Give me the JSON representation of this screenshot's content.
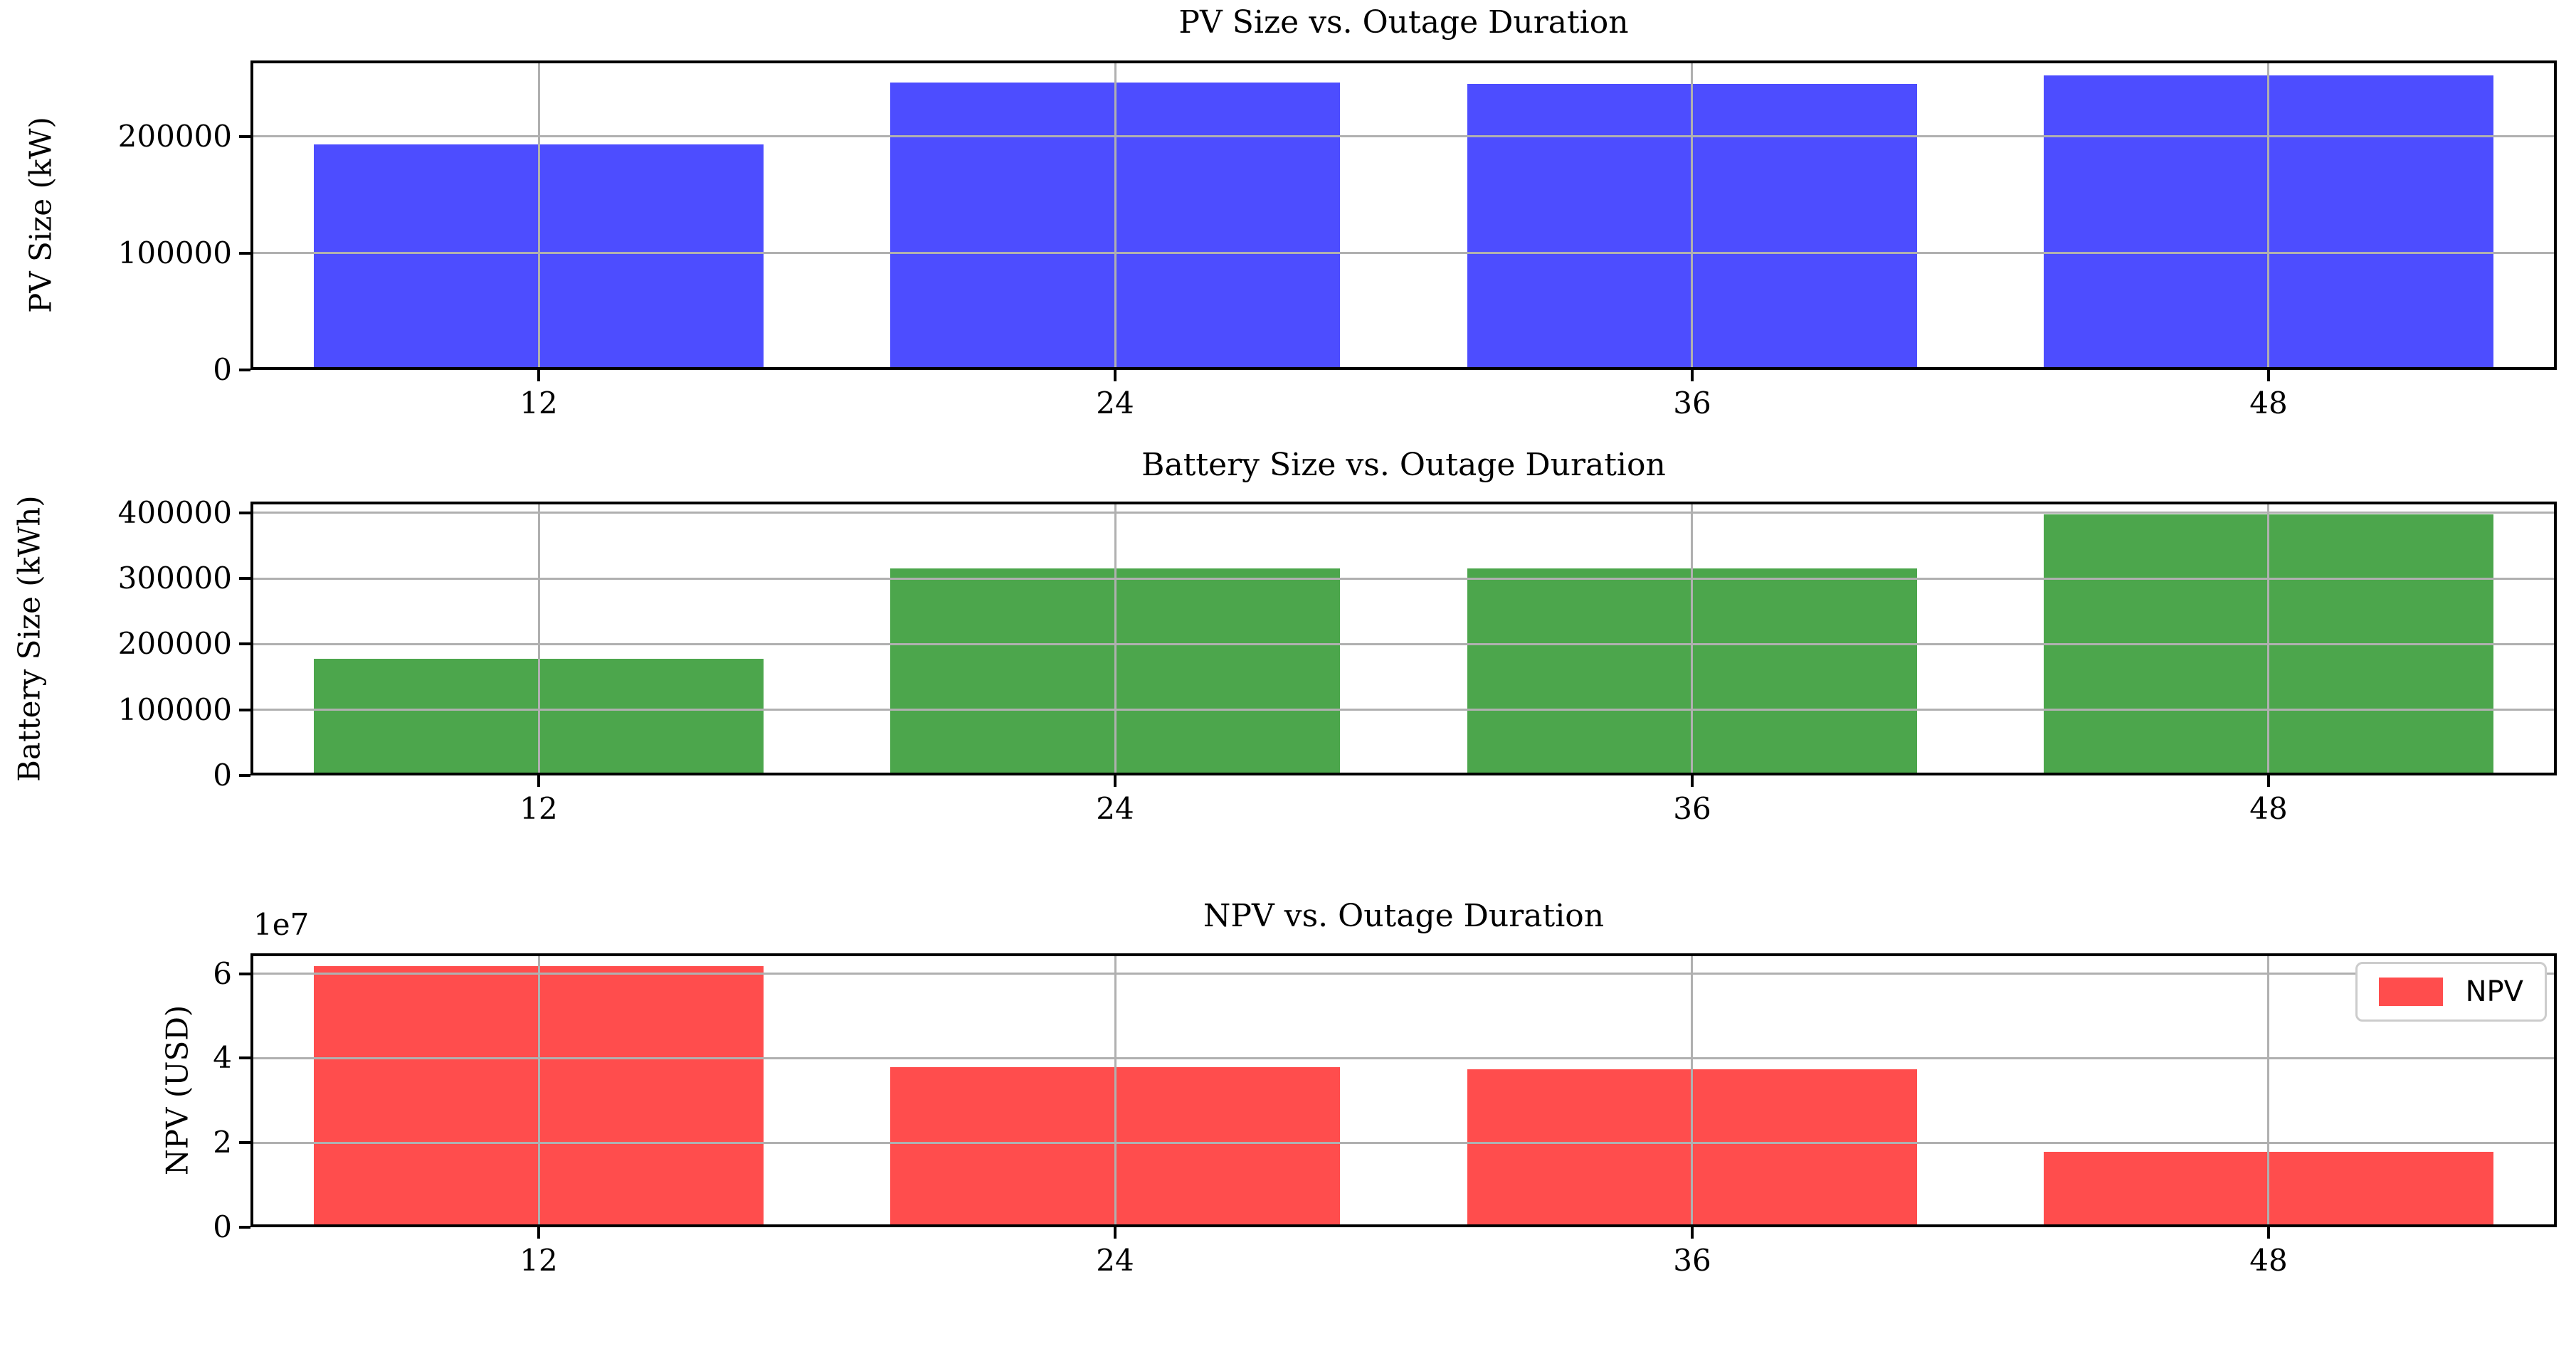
{
  "figure": {
    "background": "#ffffff",
    "grid_color": "#b0b0b0",
    "spine_color": "#000000"
  },
  "chart_data": [
    {
      "type": "bar",
      "title": "PV Size vs. Outage Duration",
      "ylabel": "PV Size (kW)",
      "xlabel": "",
      "categories": [
        "12",
        "24",
        "36",
        "48"
      ],
      "values": [
        193000,
        246000,
        245000,
        252000
      ],
      "bar_color": "#4d4dff",
      "yticks": [
        0,
        100000,
        200000
      ],
      "ytick_labels": [
        "0",
        "100000",
        "200000"
      ],
      "ylim": [
        0,
        265000
      ],
      "grid": true,
      "legend": null
    },
    {
      "type": "bar",
      "title": "Battery Size vs. Outage Duration",
      "ylabel": "Battery Size (kWh)",
      "xlabel": "",
      "categories": [
        "12",
        "24",
        "36",
        "48"
      ],
      "values": [
        178000,
        315000,
        315000,
        397000
      ],
      "bar_color": "#4ca64c",
      "yticks": [
        0,
        100000,
        200000,
        300000,
        400000
      ],
      "ytick_labels": [
        "0",
        "100000",
        "200000",
        "300000",
        "400000"
      ],
      "ylim": [
        0,
        417000
      ],
      "grid": true,
      "legend": null
    },
    {
      "type": "bar",
      "title": "NPV vs. Outage Duration",
      "ylabel": "NPV (USD)",
      "xlabel": "",
      "categories": [
        "12",
        "24",
        "36",
        "48"
      ],
      "values": [
        61700000,
        37900000,
        37400000,
        17800000
      ],
      "bar_color": "#ff4d4d",
      "yticks": [
        0,
        20000000,
        40000000,
        60000000
      ],
      "ytick_labels": [
        "0",
        "2",
        "4",
        "6"
      ],
      "offset_text": "1e7",
      "ylim": [
        0,
        64800000
      ],
      "grid": true,
      "legend": {
        "label": "NPV",
        "swatch_color": "#ff4d4d"
      }
    }
  ]
}
